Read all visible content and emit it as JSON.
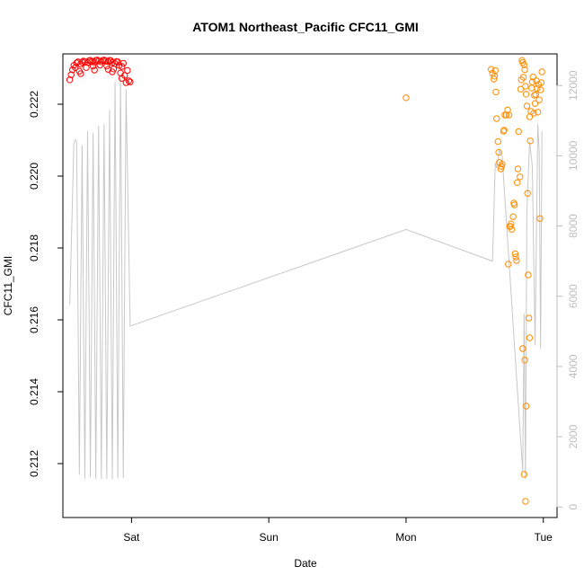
{
  "chart_data": {
    "type": "scatter",
    "title": "ATOM1 Northeast_Pacific CFC11_GMI",
    "xlabel": "Date",
    "ylabel": "CFC11_GMI",
    "x_ticks": [
      {
        "label": "Sat",
        "day": 1
      },
      {
        "label": "Sun",
        "day": 2
      },
      {
        "label": "Mon",
        "day": 3
      },
      {
        "label": "Tue",
        "day": 4
      }
    ],
    "xlim_days": [
      0.5,
      4.1
    ],
    "ylim": [
      0.2105,
      0.2234
    ],
    "y_ticks": [
      "0.212",
      "0.214",
      "0.216",
      "0.218",
      "0.220",
      "0.222"
    ],
    "y2lim": [
      -300,
      12900
    ],
    "y2_ticks": [
      "0",
      "2000",
      "4000",
      "6000",
      "8000",
      "10000",
      "12000"
    ],
    "grid": false,
    "colors": {
      "series_a": "#ff0000",
      "series_b": "#ff8c00",
      "line": "#c8c8c8",
      "axis": "#000000",
      "axis_right": "#bdbdbd"
    },
    "series": [
      {
        "color": "#ff0000",
        "points": [
          [
            0.55,
            0.22268
          ],
          [
            0.56,
            0.22282
          ],
          [
            0.57,
            0.22296
          ],
          [
            0.58,
            0.22308
          ],
          [
            0.59,
            0.22302
          ],
          [
            0.6,
            0.22315
          ],
          [
            0.61,
            0.22318
          ],
          [
            0.62,
            0.22292
          ],
          [
            0.63,
            0.22312
          ],
          [
            0.64,
            0.22317
          ],
          [
            0.65,
            0.2232
          ],
          [
            0.66,
            0.22318
          ],
          [
            0.67,
            0.22302
          ],
          [
            0.68,
            0.22316
          ],
          [
            0.69,
            0.22321
          ],
          [
            0.7,
            0.22322
          ],
          [
            0.71,
            0.22318
          ],
          [
            0.72,
            0.22306
          ],
          [
            0.73,
            0.22317
          ],
          [
            0.74,
            0.22322
          ],
          [
            0.75,
            0.22323
          ],
          [
            0.76,
            0.2232
          ],
          [
            0.77,
            0.22309
          ],
          [
            0.78,
            0.22318
          ],
          [
            0.79,
            0.22322
          ],
          [
            0.8,
            0.22323
          ],
          [
            0.81,
            0.22321
          ],
          [
            0.82,
            0.22306
          ],
          [
            0.83,
            0.22318
          ],
          [
            0.84,
            0.22322
          ],
          [
            0.85,
            0.22321
          ],
          [
            0.86,
            0.22316
          ],
          [
            0.87,
            0.22298
          ],
          [
            0.88,
            0.22313
          ],
          [
            0.89,
            0.22319
          ],
          [
            0.9,
            0.22318
          ],
          [
            0.91,
            0.22308
          ],
          [
            0.92,
            0.22287
          ],
          [
            0.93,
            0.22305
          ],
          [
            0.94,
            0.22314
          ],
          [
            0.95,
            0.2228
          ],
          [
            0.96,
            0.2226
          ],
          [
            0.97,
            0.22294
          ],
          [
            0.98,
            0.22265
          ],
          [
            0.99,
            0.22262
          ],
          [
            0.63,
            0.22285
          ],
          [
            0.73,
            0.22295
          ],
          [
            0.83,
            0.22297
          ],
          [
            0.93,
            0.22272
          ],
          [
            0.86,
            0.2229
          ]
        ]
      },
      {
        "color": "#ff8c00",
        "points": [
          [
            3.0,
            0.22218
          ],
          [
            3.62,
            0.22297
          ],
          [
            3.63,
            0.22286
          ],
          [
            3.64,
            0.2227
          ],
          [
            3.645,
            0.22278
          ],
          [
            3.65,
            0.22294
          ],
          [
            3.655,
            0.22234
          ],
          [
            3.66,
            0.2216
          ],
          [
            3.67,
            0.22096
          ],
          [
            3.675,
            0.22066
          ],
          [
            3.68,
            0.22038
          ],
          [
            3.69,
            0.2202
          ],
          [
            3.695,
            0.22027
          ],
          [
            3.7,
            0.22033
          ],
          [
            3.71,
            0.22125
          ],
          [
            3.715,
            0.22128
          ],
          [
            3.72,
            0.2217
          ],
          [
            3.73,
            0.2217
          ],
          [
            3.74,
            0.22184
          ],
          [
            3.75,
            0.2217
          ],
          [
            3.745,
            0.21755
          ],
          [
            3.755,
            0.2186
          ],
          [
            3.76,
            0.2186
          ],
          [
            3.765,
            0.21867
          ],
          [
            3.77,
            0.21852
          ],
          [
            3.78,
            0.21887
          ],
          [
            3.785,
            0.21925
          ],
          [
            3.79,
            0.2192
          ],
          [
            3.795,
            0.21784
          ],
          [
            3.8,
            0.21775
          ],
          [
            3.805,
            0.21765
          ],
          [
            3.81,
            0.21982
          ],
          [
            3.815,
            0.2202
          ],
          [
            3.82,
            0.22124
          ],
          [
            3.83,
            0.21998
          ],
          [
            3.835,
            0.22242
          ],
          [
            3.84,
            0.22268
          ],
          [
            3.845,
            0.22322
          ],
          [
            3.85,
            0.22316
          ],
          [
            3.855,
            0.22275
          ],
          [
            3.86,
            0.2231
          ],
          [
            3.865,
            0.22296
          ],
          [
            3.87,
            0.2225
          ],
          [
            3.875,
            0.22228
          ],
          [
            3.88,
            0.22195
          ],
          [
            3.885,
            0.21952
          ],
          [
            3.89,
            0.21725
          ],
          [
            3.895,
            0.21605
          ],
          [
            3.9,
            0.22165
          ],
          [
            3.905,
            0.22098
          ],
          [
            3.91,
            0.2218
          ],
          [
            3.915,
            0.22245
          ],
          [
            3.92,
            0.22262
          ],
          [
            3.925,
            0.22276
          ],
          [
            3.93,
            0.22175
          ],
          [
            3.935,
            0.22225
          ],
          [
            3.94,
            0.22202
          ],
          [
            3.945,
            0.22227
          ],
          [
            3.95,
            0.22265
          ],
          [
            3.955,
            0.22244
          ],
          [
            3.96,
            0.22178
          ],
          [
            3.965,
            0.22255
          ],
          [
            3.97,
            0.22212
          ],
          [
            3.975,
            0.21882
          ],
          [
            3.85,
            0.2152
          ],
          [
            3.865,
            0.21488
          ],
          [
            3.9,
            0.2155
          ],
          [
            3.86,
            0.2117
          ],
          [
            3.875,
            0.2136
          ],
          [
            3.87,
            0.21095
          ],
          [
            3.98,
            0.2224
          ],
          [
            3.985,
            0.2226
          ],
          [
            3.99,
            0.2229
          ]
        ]
      }
    ],
    "line_series": {
      "color": "#c8c8c8",
      "axis": "right",
      "points": [
        [
          0.55,
          5750
        ],
        [
          0.58,
          10350
        ],
        [
          0.59,
          10450
        ],
        [
          0.6,
          10400
        ],
        [
          0.62,
          920
        ],
        [
          0.64,
          10300
        ],
        [
          0.66,
          800
        ],
        [
          0.68,
          10700
        ],
        [
          0.7,
          850
        ],
        [
          0.72,
          10650
        ],
        [
          0.74,
          800
        ],
        [
          0.76,
          10850
        ],
        [
          0.78,
          800
        ],
        [
          0.8,
          10900
        ],
        [
          0.82,
          800
        ],
        [
          0.84,
          11300
        ],
        [
          0.86,
          800
        ],
        [
          0.88,
          12100
        ],
        [
          0.9,
          820
        ],
        [
          0.92,
          12300
        ],
        [
          0.94,
          820
        ],
        [
          0.96,
          11900
        ],
        [
          0.99,
          5150
        ],
        [
          3.0,
          7900
        ],
        [
          3.63,
          7000
        ],
        [
          3.65,
          9800
        ],
        [
          3.66,
          9650
        ],
        [
          3.68,
          10150
        ],
        [
          3.7,
          10000
        ],
        [
          3.85,
          1000
        ],
        [
          3.86,
          5500
        ],
        [
          3.87,
          800
        ],
        [
          3.88,
          8400
        ],
        [
          3.9,
          10400
        ],
        [
          3.92,
          9700
        ],
        [
          3.94,
          4600
        ],
        [
          3.96,
          10900
        ],
        [
          3.97,
          10100
        ],
        [
          3.98,
          4500
        ],
        [
          3.99,
          10700
        ]
      ]
    }
  }
}
